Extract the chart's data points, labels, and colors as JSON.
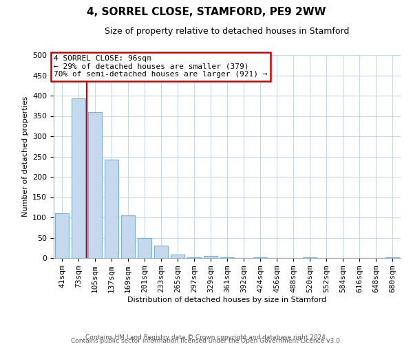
{
  "title": "4, SORREL CLOSE, STAMFORD, PE9 2WW",
  "subtitle": "Size of property relative to detached houses in Stamford",
  "xlabel": "Distribution of detached houses by size in Stamford",
  "ylabel": "Number of detached properties",
  "bar_labels": [
    "41sqm",
    "73sqm",
    "105sqm",
    "137sqm",
    "169sqm",
    "201sqm",
    "233sqm",
    "265sqm",
    "297sqm",
    "329sqm",
    "361sqm",
    "392sqm",
    "424sqm",
    "456sqm",
    "488sqm",
    "520sqm",
    "552sqm",
    "584sqm",
    "616sqm",
    "648sqm",
    "680sqm"
  ],
  "bar_values": [
    110,
    393,
    360,
    243,
    105,
    50,
    30,
    8,
    2,
    5,
    2,
    0,
    2,
    0,
    0,
    2,
    0,
    0,
    0,
    0,
    2
  ],
  "bar_color": "#c6d9ec",
  "bar_edgecolor": "#7bafd4",
  "vline_color": "#cc0000",
  "vline_x_index": 1.5,
  "annotation_text_line1": "4 SORREL CLOSE: 96sqm",
  "annotation_text_line2": "← 29% of detached houses are smaller (379)",
  "annotation_text_line3": "70% of semi-detached houses are larger (921) →",
  "annotation_box_color": "#cc0000",
  "ylim": [
    0,
    500
  ],
  "yticks": [
    0,
    50,
    100,
    150,
    200,
    250,
    300,
    350,
    400,
    450,
    500
  ],
  "footer_line1": "Contains HM Land Registry data © Crown copyright and database right 2024.",
  "footer_line2": "Contains public sector information licensed under the Open Government Licence v3.0.",
  "background_color": "#ffffff",
  "grid_color": "#c8d8e8",
  "title_fontsize": 11,
  "subtitle_fontsize": 9,
  "ylabel_fontsize": 8,
  "xlabel_fontsize": 8,
  "tick_fontsize": 8,
  "annotation_fontsize": 8,
  "footer_fontsize": 6.5
}
